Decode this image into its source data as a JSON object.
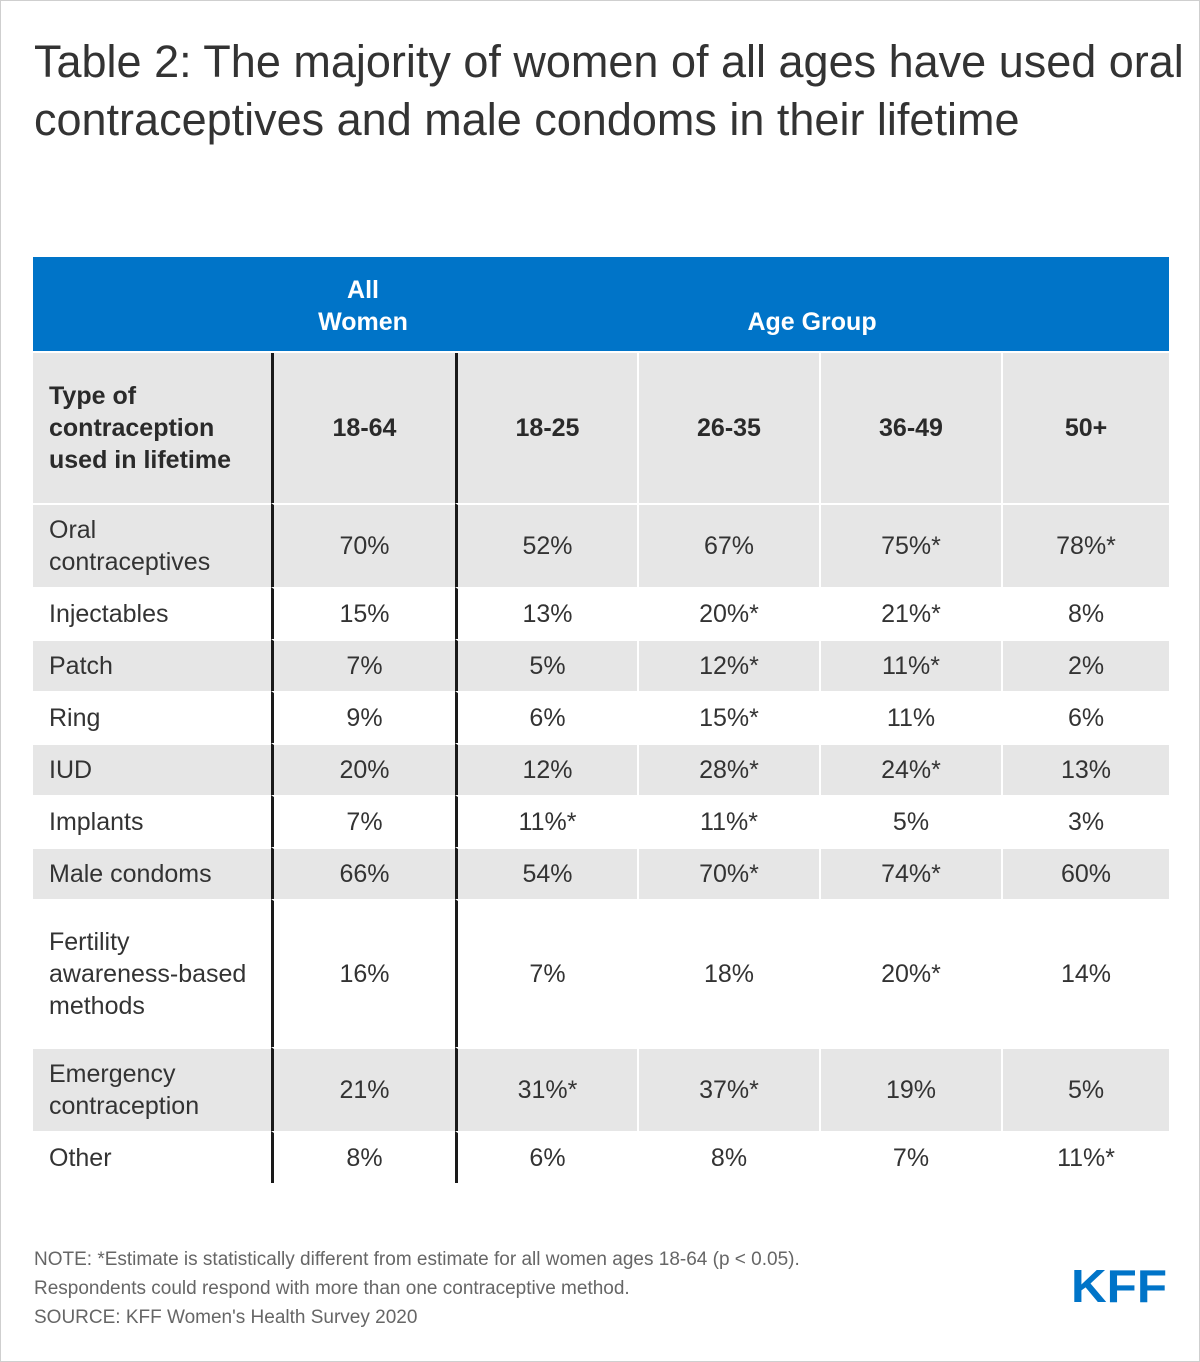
{
  "title": "Table 2: The majority of women of all ages have used oral contraceptives and male condoms in their lifetime",
  "header": {
    "all_women": [
      "All",
      "Women"
    ],
    "age_group": "Age Group"
  },
  "subheader": {
    "label": "Type of contraception used in lifetime",
    "columns": [
      "18-64",
      "18-25",
      "26-35",
      "36-49",
      "50+"
    ]
  },
  "chart_data": {
    "type": "table",
    "title": "Table 2: The majority of women of all ages have used oral contraceptives and male condoms in their lifetime",
    "columns": [
      "18-64",
      "18-25",
      "26-35",
      "36-49",
      "50+"
    ],
    "rows": [
      {
        "label": "Oral contraceptives",
        "values": [
          "70%",
          "52%",
          "67%",
          "75%*",
          "78%*"
        ]
      },
      {
        "label": "Injectables",
        "values": [
          "15%",
          "13%",
          "20%*",
          "21%*",
          "8%"
        ]
      },
      {
        "label": "Patch",
        "values": [
          "7%",
          "5%",
          "12%*",
          "11%*",
          "2%"
        ]
      },
      {
        "label": "Ring",
        "values": [
          "9%",
          "6%",
          "15%*",
          "11%",
          "6%"
        ]
      },
      {
        "label": "IUD",
        "values": [
          "20%",
          "12%",
          "28%*",
          "24%*",
          "13%"
        ]
      },
      {
        "label": "Implants",
        "values": [
          "7%",
          "11%*",
          "11%*",
          "5%",
          "3%"
        ]
      },
      {
        "label": "Male condoms",
        "values": [
          "66%",
          "54%",
          "70%*",
          "74%*",
          "60%"
        ]
      },
      {
        "label": "Fertility awareness-based methods",
        "values": [
          "16%",
          "7%",
          "18%",
          "20%*",
          "14%"
        ]
      },
      {
        "label": "Emergency contraception",
        "values": [
          "21%",
          "31%*",
          "37%*",
          "19%",
          "5%"
        ]
      },
      {
        "label": "Other",
        "values": [
          "8%",
          "6%",
          "8%",
          "7%",
          "11%*"
        ]
      }
    ]
  },
  "notes": [
    "NOTE: *Estimate is statistically different from estimate for all women ages 18-64 (p < 0.05).",
    "Respondents could respond with more than one contraceptive method.",
    "SOURCE: KFF Women's Health Survey 2020"
  ],
  "logo": {
    "text": "KFF",
    "color": "#0074c8"
  },
  "colors": {
    "header": "#0074c8",
    "row_gray": "#e6e6e6",
    "divider": "#1a1a1a"
  }
}
